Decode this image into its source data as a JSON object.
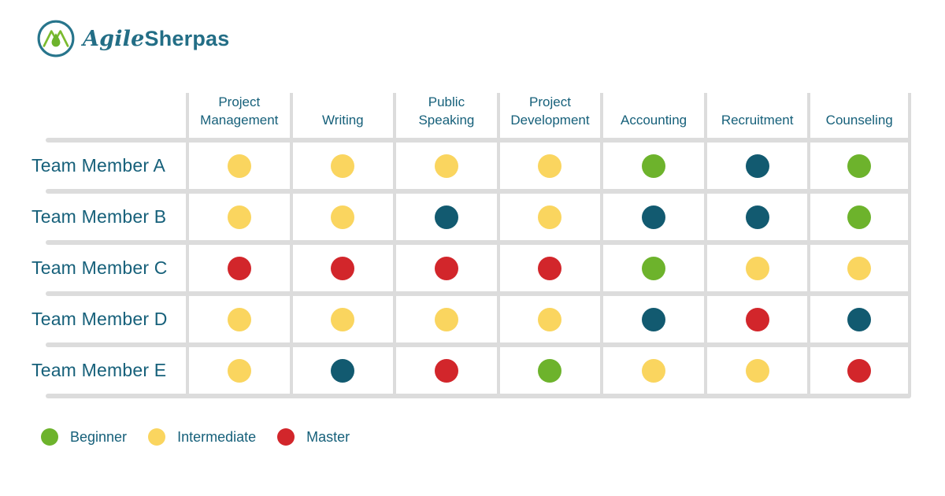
{
  "brand": {
    "agile": "Agile",
    "sherpas": "Sherpas",
    "logo_icon": "mountain-droplet-in-circle"
  },
  "colors": {
    "text": "#16607A",
    "grid": "#DCDCDC",
    "logo_teal": "#27758C",
    "logo_green": "#7BBB2F",
    "dots": {
      "yellow": "#FAD55F",
      "green": "#6DB32C",
      "teal": "#125A70",
      "red": "#D2262B"
    }
  },
  "legend": [
    {
      "label": "Beginner",
      "color": "green"
    },
    {
      "label": "Intermediate",
      "color": "yellow"
    },
    {
      "label": "Master",
      "color": "red"
    }
  ],
  "chart_data": {
    "type": "table",
    "columns": [
      "Project Management",
      "Writing",
      "Public Speaking",
      "Project Development",
      "Accounting",
      "Recruitment",
      "Counseling"
    ],
    "rows": [
      "Team Member A",
      "Team Member B",
      "Team Member C",
      "Team Member D",
      "Team Member E"
    ],
    "cell_colors": [
      [
        "yellow",
        "yellow",
        "yellow",
        "yellow",
        "green",
        "teal",
        "green"
      ],
      [
        "yellow",
        "yellow",
        "teal",
        "yellow",
        "teal",
        "teal",
        "green"
      ],
      [
        "red",
        "red",
        "red",
        "red",
        "green",
        "yellow",
        "yellow"
      ],
      [
        "yellow",
        "yellow",
        "yellow",
        "yellow",
        "teal",
        "red",
        "teal"
      ],
      [
        "yellow",
        "teal",
        "red",
        "green",
        "yellow",
        "yellow",
        "red"
      ]
    ],
    "color_legend": {
      "green": "Beginner",
      "yellow": "Intermediate",
      "red": "Master",
      "teal": ""
    },
    "layout": {
      "legend_position": "bottom-left",
      "grid": "on"
    }
  }
}
